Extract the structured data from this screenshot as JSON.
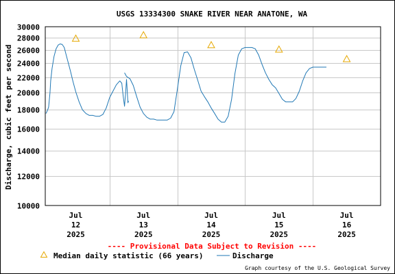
{
  "chart_data": {
    "type": "line",
    "title": "USGS 13334300 SNAKE RIVER NEAR ANATONE, WA",
    "ylabel": "Discharge, cubic feet per second",
    "xlabel": "",
    "y_scale": "log",
    "ylim": [
      10000,
      30000
    ],
    "xlim": [
      11.55,
      16.5
    ],
    "grid": true,
    "yticks": [
      {
        "value": 10000,
        "label": "10000"
      },
      {
        "value": 12000,
        "label": "12000"
      },
      {
        "value": 14000,
        "label": "14000"
      },
      {
        "value": 16000,
        "label": "16000"
      },
      {
        "value": 18000,
        "label": "18000"
      },
      {
        "value": 20000,
        "label": "20000"
      },
      {
        "value": 22000,
        "label": "22000"
      },
      {
        "value": 24000,
        "label": "24000"
      },
      {
        "value": 26000,
        "label": "26000"
      },
      {
        "value": 28000,
        "label": "28000"
      },
      {
        "value": 30000,
        "label": "30000"
      }
    ],
    "xticks": [
      {
        "value": 12.0,
        "month": "Jul",
        "day": "12",
        "year": "2025"
      },
      {
        "value": 13.0,
        "month": "Jul",
        "day": "13",
        "year": "2025"
      },
      {
        "value": 14.0,
        "month": "Jul",
        "day": "14",
        "year": "2025"
      },
      {
        "value": 15.0,
        "month": "Jul",
        "day": "15",
        "year": "2025"
      },
      {
        "value": 16.0,
        "month": "Jul",
        "day": "16",
        "year": "2025"
      }
    ],
    "series": [
      {
        "name": "Median daily statistic (66 years)",
        "kind": "marker",
        "color": "#e6a800",
        "x": [
          12.0,
          13.0,
          14.0,
          15.0,
          16.0
        ],
        "y": [
          27900,
          28500,
          26800,
          26100,
          24600
        ]
      },
      {
        "name": "Discharge",
        "kind": "line",
        "color": "#1f77b4",
        "segments": [
          {
            "x": [
              11.56,
              11.58,
              11.6,
              11.62,
              11.63,
              11.65,
              11.68,
              11.71,
              11.74,
              11.77,
              11.8,
              11.83,
              11.85,
              11.88,
              11.92,
              11.96,
              12.0,
              12.05,
              12.1,
              12.15,
              12.2,
              12.25,
              12.3,
              12.35,
              12.4,
              12.45,
              12.5,
              12.55,
              12.6,
              12.65,
              12.68,
              12.7,
              12.72,
              12.74,
              12.75,
              12.76,
              12.77,
              12.78
            ],
            "y": [
              17600,
              17900,
              18300,
              20000,
              21500,
              23200,
              25000,
              26200,
              26800,
              27000,
              26900,
              26400,
              25600,
              24400,
              22900,
              21400,
              20100,
              18900,
              18000,
              17600,
              17400,
              17400,
              17300,
              17300,
              17500,
              18200,
              19400,
              20200,
              21000,
              21500,
              21200,
              19600,
              18400,
              20500,
              21700,
              20300,
              18800,
              19000
            ]
          },
          {
            "x": [
              12.72,
              12.75,
              12.8,
              12.85,
              12.9,
              12.95,
              13.0,
              13.05,
              13.1,
              13.15,
              13.2,
              13.25,
              13.3,
              13.35,
              13.4,
              13.45,
              13.5,
              13.55,
              13.6,
              13.65,
              13.7,
              13.75,
              13.8,
              13.85,
              13.9,
              13.95,
              14.0,
              14.05,
              14.1,
              14.15,
              14.2,
              14.25,
              14.3,
              14.35,
              14.4,
              14.45,
              14.5,
              14.55,
              14.6,
              14.65,
              14.7,
              14.75,
              14.8,
              14.85,
              14.9,
              14.95,
              15.0,
              15.05,
              15.1,
              15.15,
              15.2,
              15.25,
              15.3,
              15.35,
              15.4,
              15.45,
              15.5,
              15.55,
              15.6,
              15.65,
              15.7
            ],
            "y": [
              22600,
              22100,
              21800,
              20900,
              19500,
              18300,
              17600,
              17200,
              17000,
              17000,
              16900,
              16900,
              16900,
              16900,
              17100,
              17800,
              20400,
              23600,
              25600,
              25700,
              24800,
              23100,
              21600,
              20200,
              19500,
              18900,
              18200,
              17600,
              17000,
              16700,
              16700,
              17300,
              19200,
              22500,
              25200,
              26200,
              26400,
              26400,
              26400,
              26200,
              25200,
              23800,
              22600,
              21700,
              21000,
              20600,
              19900,
              19200,
              18900,
              18900,
              18900,
              19300,
              20200,
              21500,
              22600,
              23200,
              23400,
              23400,
              23400,
              23400,
              23400
            ]
          }
        ]
      }
    ]
  },
  "notices": {
    "provisional": "---- Provisional Data Subject to Revision ----",
    "provisional_color": "#ff0000"
  },
  "legend": {
    "median_label": "Median daily statistic (66 years)",
    "discharge_label": "Discharge"
  },
  "credit": "Graph courtesy of the U.S. Geological Survey"
}
